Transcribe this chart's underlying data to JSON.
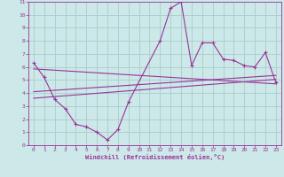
{
  "bg_color": "#cce8e8",
  "grid_color": "#aacccc",
  "line_color": "#993399",
  "xlabel": "Windchill (Refroidissement éolien,°C)",
  "xlim": [
    -0.5,
    23.5
  ],
  "ylim": [
    0,
    11
  ],
  "xticks": [
    0,
    1,
    2,
    3,
    4,
    5,
    6,
    7,
    8,
    9,
    10,
    11,
    12,
    13,
    14,
    15,
    16,
    17,
    18,
    19,
    20,
    21,
    22,
    23
  ],
  "yticks": [
    0,
    1,
    2,
    3,
    4,
    5,
    6,
    7,
    8,
    9,
    10,
    11
  ],
  "main_x": [
    0,
    1,
    2,
    3,
    4,
    5,
    6,
    7,
    8,
    9,
    12,
    13,
    14,
    15,
    16,
    17,
    18,
    19,
    20,
    21,
    22,
    23
  ],
  "main_y": [
    6.3,
    5.2,
    3.5,
    2.8,
    1.6,
    1.4,
    1.0,
    0.4,
    1.2,
    3.3,
    8.0,
    10.5,
    11.0,
    6.1,
    7.85,
    7.85,
    6.6,
    6.5,
    6.1,
    6.0,
    7.1,
    4.8
  ],
  "line1_x": [
    0,
    23
  ],
  "line1_y": [
    5.85,
    4.7
  ],
  "line2_x": [
    0,
    23
  ],
  "line2_y": [
    4.1,
    5.35
  ],
  "line3_x": [
    0,
    23
  ],
  "line3_y": [
    3.6,
    5.05
  ],
  "tick_fontsize": 4.5,
  "xlabel_fontsize": 5.0
}
